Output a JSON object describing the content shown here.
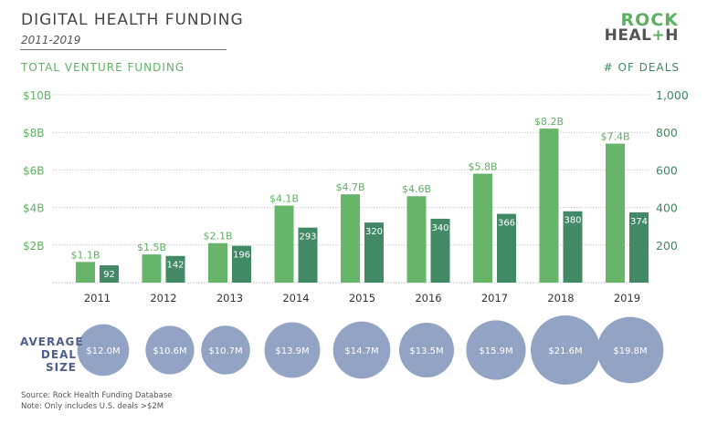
{
  "header": {
    "title": "DIGITAL HEALTH FUNDING",
    "subtitle": "2011-2019",
    "left_axis_label": "TOTAL VENTURE FUNDING",
    "right_axis_label": "# OF DEALS",
    "logo_line1": "ROCK",
    "logo_line2_a": "HEAL",
    "logo_line2_plus": "+",
    "logo_line2_b": "H"
  },
  "colors": {
    "funding_bar": "#66b56a",
    "deals_bar": "#428a66",
    "funding_text": "#62b065",
    "deals_text": "#3d8a62",
    "bubble": "#93a3c4",
    "bubble_label": "#4d5f8c"
  },
  "chart_data": {
    "type": "bar",
    "title": "DIGITAL HEALTH FUNDING",
    "subtitle": "2011-2019",
    "categories": [
      "2011",
      "2012",
      "2013",
      "2014",
      "2015",
      "2016",
      "2017",
      "2018",
      "2019"
    ],
    "series": [
      {
        "name": "Total Venture Funding",
        "axis": "left",
        "unit": "$B",
        "values": [
          1.1,
          1.5,
          2.1,
          4.1,
          4.7,
          4.6,
          5.8,
          8.2,
          7.4
        ],
        "labels": [
          "$1.1B",
          "$1.5B",
          "$2.1B",
          "$4.1B",
          "$4.7B",
          "$4.6B",
          "$5.8B",
          "$8.2B",
          "$7.4B"
        ]
      },
      {
        "name": "# of Deals",
        "axis": "right",
        "values": [
          92,
          142,
          196,
          293,
          320,
          340,
          366,
          380,
          374
        ],
        "labels": [
          "92",
          "142",
          "196",
          "293",
          "320",
          "340",
          "366",
          "380",
          "374"
        ]
      }
    ],
    "left_axis": {
      "label": "TOTAL VENTURE FUNDING",
      "ylim": [
        0,
        10
      ],
      "ticks": [
        "$2B",
        "$4B",
        "$6B",
        "$8B",
        "$10B"
      ],
      "tick_values": [
        2,
        4,
        6,
        8,
        10
      ]
    },
    "right_axis": {
      "label": "# OF DEALS",
      "ylim": [
        0,
        1000
      ],
      "ticks": [
        "200",
        "400",
        "600",
        "800",
        "1,000"
      ],
      "tick_values": [
        200,
        400,
        600,
        800,
        1000
      ]
    },
    "grid": true,
    "average_deal_size": {
      "label_lines": [
        "AVERAGE",
        "DEAL",
        "SIZE"
      ],
      "unit": "$M",
      "values": [
        12.0,
        10.6,
        10.7,
        13.9,
        14.7,
        13.5,
        15.9,
        21.6,
        19.8
      ],
      "labels": [
        "$12.0M",
        "$10.6M",
        "$10.7M",
        "$13.9M",
        "$14.7M",
        "$13.5M",
        "$15.9M",
        "$21.6M",
        "$19.8M"
      ]
    }
  },
  "footnotes": {
    "source": "Source: Rock Health Funding Database",
    "note": "Note: Only includes U.S. deals >$2M"
  }
}
